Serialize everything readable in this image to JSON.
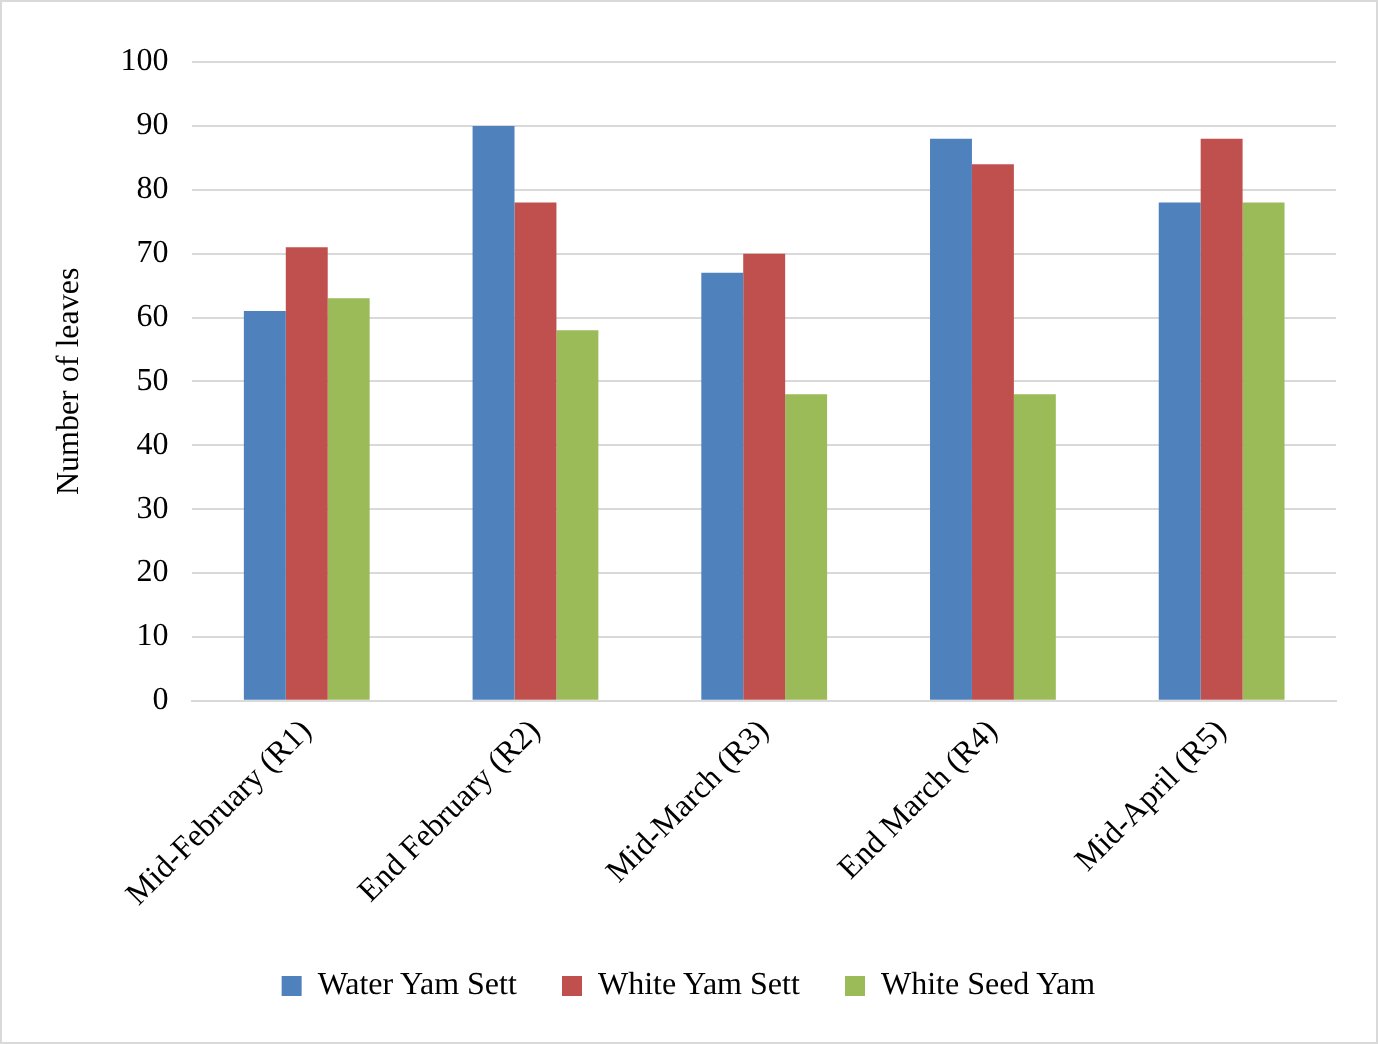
{
  "chart_data": {
    "type": "bar",
    "ylabel": "Number of leaves",
    "categories": [
      "Mid-February (R1)",
      "End February (R2)",
      "Mid-March (R3)",
      "End March (R4)",
      "Mid-April (R5)"
    ],
    "series": [
      {
        "name": "Water Yam Sett",
        "color": "#4f81bd",
        "values": [
          61,
          90,
          67,
          88,
          78
        ]
      },
      {
        "name": "White Yam Sett",
        "color": "#c0504d",
        "values": [
          71,
          78,
          70,
          84,
          88
        ]
      },
      {
        "name": "White Seed Yam",
        "color": "#9bbb59",
        "values": [
          63,
          58,
          48,
          48,
          78
        ]
      }
    ],
    "ylim": [
      0,
      100
    ],
    "yticks": [
      0,
      10,
      20,
      30,
      40,
      50,
      60,
      70,
      80,
      90,
      100
    ],
    "grid": "y",
    "legend": "bottom"
  }
}
